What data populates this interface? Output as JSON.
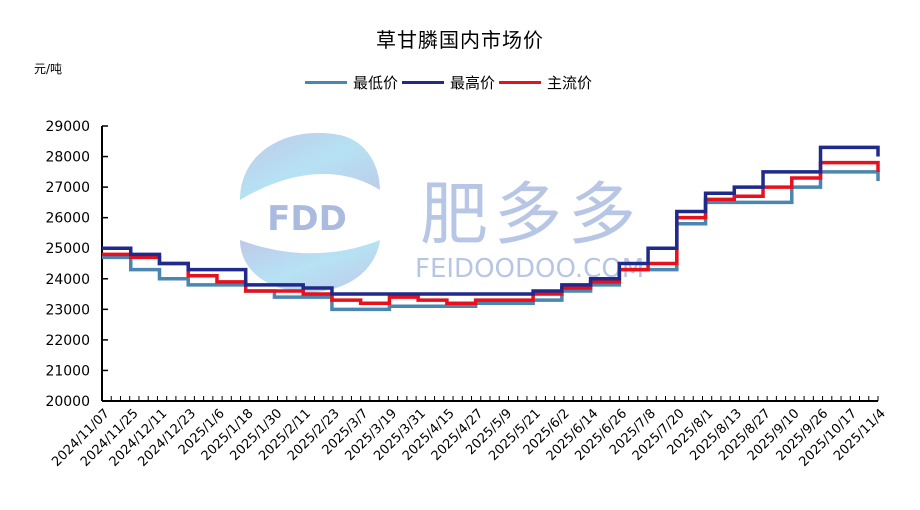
{
  "title": "草甘膦国内市场价",
  "unit": "元/吨",
  "watermark": {
    "badge": "FDD",
    "brand_cn": "肥多多",
    "brand_en": "FEIDOODOO.COM"
  },
  "legend": [
    {
      "label": "最低价",
      "color": "#4a86b0"
    },
    {
      "label": "最高价",
      "color": "#1f2a8c"
    },
    {
      "label": "主流价",
      "color": "#e8101c"
    }
  ],
  "chart_data": {
    "type": "line",
    "title": "草甘膦国内市场价",
    "ylabel": "元/吨",
    "xlabel": "",
    "ylim": [
      20000,
      29000
    ],
    "yticks": [
      20000,
      21000,
      22000,
      23000,
      24000,
      25000,
      26000,
      27000,
      28000,
      29000
    ],
    "grid": false,
    "legend_position": "top",
    "x_tick_labels": [
      "2024/11/07",
      "2024/11/25",
      "2024/12/11",
      "2024/12/23",
      "2025/1/6",
      "2025/1/18",
      "2025/1/30",
      "2025/2/11",
      "2025/2/23",
      "2025/3/7",
      "2025/3/19",
      "2025/3/31",
      "2025/4/15",
      "2025/4/27",
      "2025/5/9",
      "2025/5/21",
      "2025/6/2",
      "2025/6/14",
      "2025/6/26",
      "2025/7/8",
      "2025/7/20",
      "2025/8/1",
      "2025/8/13",
      "2025/8/27",
      "2025/9/10",
      "2025/9/26",
      "2025/10/17",
      "2025/11/4"
    ],
    "categories": [
      "2024/11/07",
      "2024/11/25",
      "2024/12/11",
      "2024/12/23",
      "2025/1/6",
      "2025/1/18",
      "2025/1/30",
      "2025/2/11",
      "2025/2/23",
      "2025/3/7",
      "2025/3/19",
      "2025/3/31",
      "2025/4/15",
      "2025/4/27",
      "2025/5/9",
      "2025/5/21",
      "2025/6/2",
      "2025/6/14",
      "2025/6/26",
      "2025/7/8",
      "2025/7/20",
      "2025/8/1",
      "2025/8/13",
      "2025/8/27",
      "2025/9/10",
      "2025/9/26",
      "2025/10/17",
      "2025/11/4"
    ],
    "series": [
      {
        "name": "最低价",
        "color": "#4a86b0",
        "values": [
          24700,
          24300,
          24000,
          23800,
          23800,
          23600,
          23400,
          23400,
          23000,
          23000,
          23100,
          23100,
          23100,
          23200,
          23200,
          23300,
          23600,
          23800,
          24300,
          24300,
          25800,
          26500,
          26500,
          26500,
          27000,
          27500,
          27500,
          27200
        ]
      },
      {
        "name": "最高价",
        "color": "#1f2a8c",
        "values": [
          25000,
          24800,
          24500,
          24300,
          24300,
          23800,
          23800,
          23700,
          23500,
          23500,
          23500,
          23500,
          23500,
          23500,
          23500,
          23600,
          23800,
          24000,
          24500,
          25000,
          26200,
          26800,
          27000,
          27500,
          27500,
          28300,
          28300,
          28000
        ]
      },
      {
        "name": "主流价",
        "color": "#e8101c",
        "values": [
          24800,
          24700,
          24500,
          24100,
          23900,
          23600,
          23600,
          23500,
          23300,
          23200,
          23400,
          23300,
          23200,
          23300,
          23300,
          23500,
          23700,
          23900,
          24300,
          24500,
          26000,
          26600,
          26700,
          27000,
          27300,
          27800,
          27800,
          27500
        ]
      }
    ]
  }
}
